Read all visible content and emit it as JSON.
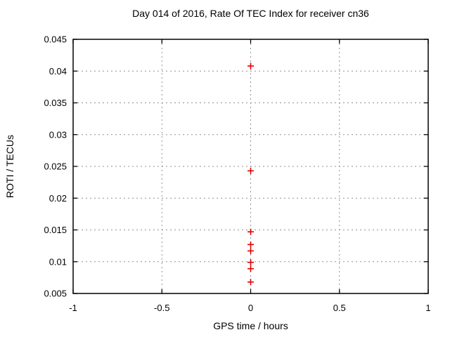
{
  "chart_data": {
    "type": "scatter",
    "title": "Day 014 of 2016, Rate Of TEC Index for receiver cn36",
    "xlabel": "GPS time / hours",
    "ylabel": "ROTI / TECUs",
    "xlim": [
      -1,
      1
    ],
    "ylim": [
      0.005,
      0.045
    ],
    "x_ticks": [
      {
        "v": -1,
        "label": "-1"
      },
      {
        "v": -0.5,
        "label": "-0.5"
      },
      {
        "v": 0,
        "label": "0"
      },
      {
        "v": 0.5,
        "label": "0.5"
      },
      {
        "v": 1,
        "label": "1"
      }
    ],
    "y_ticks": [
      {
        "v": 0.005,
        "label": "0.005"
      },
      {
        "v": 0.01,
        "label": "0.01"
      },
      {
        "v": 0.015,
        "label": "0.015"
      },
      {
        "v": 0.02,
        "label": "0.02"
      },
      {
        "v": 0.025,
        "label": "0.025"
      },
      {
        "v": 0.03,
        "label": "0.03"
      },
      {
        "v": 0.035,
        "label": "0.035"
      },
      {
        "v": 0.04,
        "label": "0.04"
      },
      {
        "v": 0.045,
        "label": "0.045"
      }
    ],
    "grid": true,
    "legend": null,
    "series": [
      {
        "name": "ROTI",
        "marker": "plus",
        "color": "#e10000",
        "points": [
          {
            "x": 0,
            "y": 0.0408
          },
          {
            "x": 0,
            "y": 0.0243
          },
          {
            "x": 0,
            "y": 0.0147
          },
          {
            "x": 0,
            "y": 0.0127
          },
          {
            "x": 0,
            "y": 0.0117
          },
          {
            "x": 0,
            "y": 0.0099
          },
          {
            "x": 0,
            "y": 0.0089
          },
          {
            "x": 0,
            "y": 0.0068
          }
        ]
      }
    ],
    "colors": {
      "axis": "#000000",
      "grid": "#909090",
      "background": "#ffffff",
      "text": "#000000"
    }
  }
}
